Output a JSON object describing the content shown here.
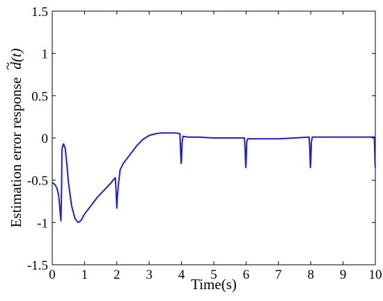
{
  "chart_data": {
    "type": "line",
    "xlabel": "Time(s)",
    "ylabel": {
      "text": "Estimation error response",
      "symbol_base": "d",
      "symbol_accent": "~",
      "symbol_arg": "(t)"
    },
    "xlim": [
      0,
      10
    ],
    "ylim": [
      -1.5,
      1.5
    ],
    "x_ticks": [
      0,
      1,
      2,
      3,
      4,
      5,
      6,
      7,
      8,
      9,
      10
    ],
    "x_tick_labels": [
      "0",
      "1",
      "2",
      "3",
      "4",
      "5",
      "6",
      "7",
      "8",
      "9",
      "10"
    ],
    "y_ticks": [
      -1.5,
      -1,
      -0.5,
      0,
      0.5,
      1,
      1.5
    ],
    "y_tick_labels": [
      "-1.5",
      "-1",
      "-0.5",
      "0",
      "0.5",
      "1",
      "1.5"
    ],
    "grid": false,
    "series": [
      {
        "color": "#1f1fbf",
        "x": [
          0,
          0.05,
          0.1,
          0.15,
          0.2,
          0.25,
          0.27,
          0.29,
          0.3,
          0.32,
          0.35,
          0.4,
          0.45,
          0.5,
          0.6,
          0.7,
          0.8,
          0.85,
          0.9,
          1.0,
          1.2,
          1.4,
          1.6,
          1.8,
          1.95,
          1.97,
          1.99,
          2.0,
          2.02,
          2.05,
          2.08,
          2.1,
          2.2,
          2.4,
          2.6,
          2.8,
          3.0,
          3.2,
          3.4,
          3.6,
          3.8,
          3.95,
          3.97,
          3.99,
          4.0,
          4.02,
          4.05,
          4.2,
          4.5,
          5.0,
          5.5,
          5.95,
          5.97,
          5.99,
          6.0,
          6.02,
          6.05,
          6.5,
          7.0,
          7.5,
          7.95,
          7.97,
          7.99,
          8.0,
          8.02,
          8.05,
          8.5,
          9.0,
          9.5,
          9.97,
          9.99,
          10.0
        ],
        "y": [
          -0.53,
          -0.54,
          -0.56,
          -0.6,
          -0.68,
          -0.9,
          -0.98,
          -0.55,
          -0.15,
          -0.1,
          -0.07,
          -0.12,
          -0.3,
          -0.52,
          -0.8,
          -0.95,
          -1.0,
          -0.99,
          -0.97,
          -0.9,
          -0.8,
          -0.7,
          -0.62,
          -0.54,
          -0.47,
          -0.58,
          -0.75,
          -0.83,
          -0.68,
          -0.55,
          -0.45,
          -0.38,
          -0.3,
          -0.2,
          -0.1,
          -0.02,
          0.03,
          0.05,
          0.06,
          0.06,
          0.06,
          0.05,
          -0.12,
          -0.3,
          -0.28,
          -0.05,
          0.02,
          0.01,
          0.01,
          0.0,
          0.0,
          0.0,
          -0.15,
          -0.35,
          -0.3,
          -0.05,
          -0.01,
          -0.01,
          -0.01,
          0.0,
          0.01,
          -0.12,
          -0.35,
          -0.3,
          -0.05,
          0.01,
          0.01,
          0.01,
          0.01,
          0.01,
          -0.3,
          -0.35
        ]
      }
    ]
  }
}
